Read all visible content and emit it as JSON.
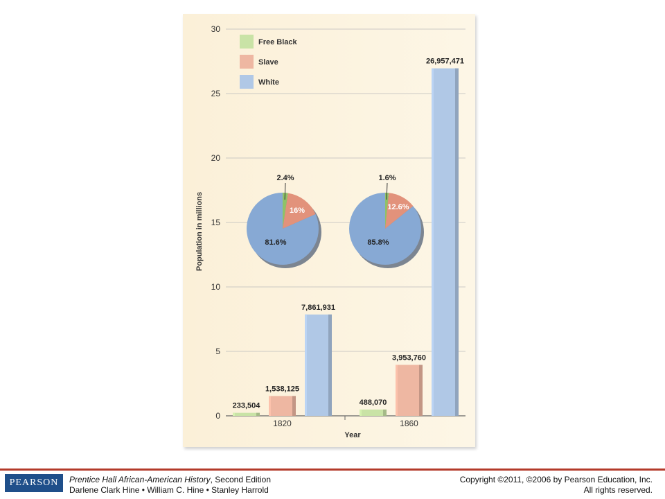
{
  "chart_data": {
    "type": "bar",
    "xlabel": "Year",
    "ylabel": "Population in millions",
    "ylim": [
      0,
      30
    ],
    "yticks": [
      0,
      5,
      10,
      15,
      20,
      25,
      30
    ],
    "grid": true,
    "legend_position": "top-left",
    "categories": [
      "1820",
      "1860"
    ],
    "series": [
      {
        "name": "Free Black",
        "color": "#c9e3a6",
        "values": [
          0.233504,
          0.48807
        ],
        "labels": [
          "233,504",
          "488,070"
        ]
      },
      {
        "name": "Slave",
        "color": "#eeb7a2",
        "values": [
          1.538125,
          3.95376
        ],
        "labels": [
          "1,538,125",
          "3,953,760"
        ]
      },
      {
        "name": "White",
        "color": "#b0c8e6",
        "values": [
          7.861931,
          26.957471
        ],
        "labels": [
          "7,861,931",
          "26,957,471"
        ]
      }
    ],
    "pies": [
      {
        "year": "1820",
        "slices": [
          {
            "name": "Free Black",
            "value": 2.4,
            "label": "2.4%",
            "color": "#8fc267"
          },
          {
            "name": "Slave",
            "value": 16.0,
            "label": "16%",
            "color": "#e2927b"
          },
          {
            "name": "White",
            "value": 81.6,
            "label": "81.6%",
            "color": "#87a9d4"
          }
        ]
      },
      {
        "year": "1860",
        "slices": [
          {
            "name": "Free Black",
            "value": 1.6,
            "label": "1.6%",
            "color": "#8fc267"
          },
          {
            "name": "Slave",
            "value": 12.6,
            "label": "12.6%",
            "color": "#e2927b"
          },
          {
            "name": "White",
            "value": 85.8,
            "label": "85.8%",
            "color": "#87a9d4"
          }
        ]
      }
    ]
  },
  "footer": {
    "logo": "PEARSON",
    "book_title": "Prentice Hall African-American History",
    "edition": ", Second Edition",
    "authors": "Darlene Clark Hine • William C. Hine • Stanley Harrold",
    "copyright": "Copyright ©2011, ©2006 by Pearson Education, Inc.",
    "rights": "All rights reserved."
  }
}
